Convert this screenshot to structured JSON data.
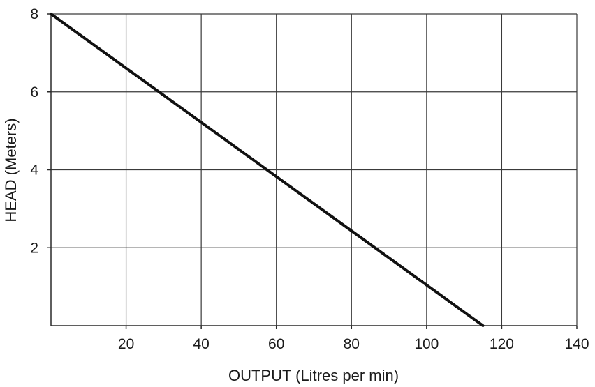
{
  "chart_data": {
    "type": "line",
    "title": "",
    "xlabel": "OUTPUT (Litres per min)",
    "ylabel": "HEAD (Meters)",
    "xlim": [
      0,
      140
    ],
    "ylim": [
      0,
      8
    ],
    "x_ticks": [
      20,
      40,
      60,
      80,
      100,
      120,
      140
    ],
    "x_tick_labels": [
      "20",
      "40",
      "60",
      "80",
      "100",
      "120",
      "140"
    ],
    "y_ticks": [
      2,
      4,
      6,
      8
    ],
    "y_tick_labels": [
      "2",
      "4",
      "6",
      "8"
    ],
    "grid": true,
    "legend": "none",
    "series": [
      {
        "points": [
          {
            "x": 0,
            "y": 8
          },
          {
            "x": 115,
            "y": 0
          }
        ]
      }
    ]
  }
}
